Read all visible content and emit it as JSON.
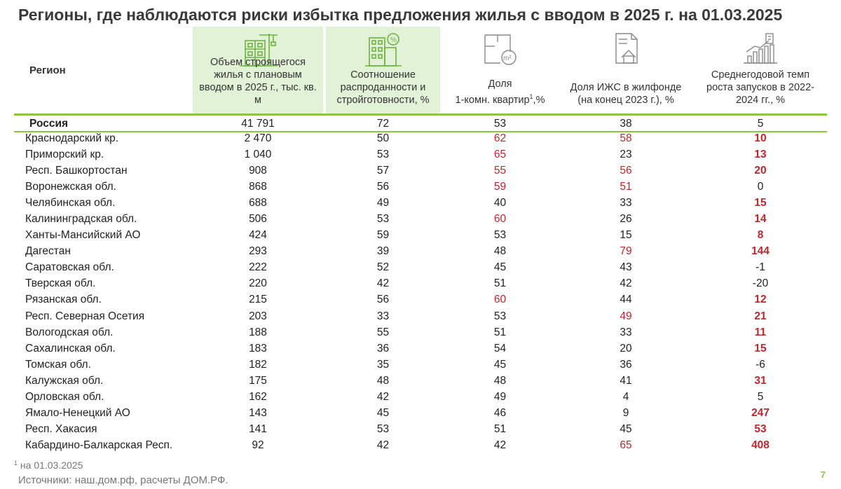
{
  "title": "Регионы, где наблюдаются риски избытка предложения жилья с вводом в 2025 г. на 01.03.2025",
  "header": {
    "region": "Регион",
    "col1": "Объем строящегося жилья с плановым вводом в 2025 г., тыс. кв. м",
    "col2": "Соотношение распроданности и стройготовности, %",
    "col3_a": "Доля",
    "col3_b": "1-комн. квартир",
    "col3_sup": "1",
    "col3_c": ",%",
    "col4": "Доля ИЖС в жилфонде (на конец 2023 г.), %",
    "col5": "Среднегодовой темп роста запусков в 2022-2024 гг., %",
    "icon_m2": "m²"
  },
  "russia": {
    "name": "Россия",
    "v1": "41 791",
    "v2": "72",
    "v3": "53",
    "v4": "38",
    "v5": "5"
  },
  "rows": [
    {
      "name": "Краснодарский кр.",
      "v1": "2 470",
      "v2": "50",
      "v3": "62",
      "v4": "58",
      "v5": "10",
      "r3": true,
      "r4": true,
      "r5": true
    },
    {
      "name": "Приморский кр.",
      "v1": "1 040",
      "v2": "53",
      "v3": "65",
      "v4": "23",
      "v5": "13",
      "r3": true,
      "r4": false,
      "r5": true
    },
    {
      "name": "Респ. Башкортостан",
      "v1": "908",
      "v2": "57",
      "v3": "55",
      "v4": "56",
      "v5": "20",
      "r3": true,
      "r4": true,
      "r5": true
    },
    {
      "name": "Воронежская обл.",
      "v1": "868",
      "v2": "56",
      "v3": "59",
      "v4": "51",
      "v5": "0",
      "r3": true,
      "r4": true,
      "r5": false
    },
    {
      "name": "Челябинская обл.",
      "v1": "688",
      "v2": "49",
      "v3": "40",
      "v4": "33",
      "v5": "15",
      "r3": false,
      "r4": false,
      "r5": true
    },
    {
      "name": "Калининградская обл.",
      "v1": "506",
      "v2": "53",
      "v3": "60",
      "v4": "26",
      "v5": "14",
      "r3": true,
      "r4": false,
      "r5": true
    },
    {
      "name": "Ханты-Мансийский АО",
      "v1": "424",
      "v2": "59",
      "v3": "53",
      "v4": "15",
      "v5": "8",
      "r3": false,
      "r4": false,
      "r5": true
    },
    {
      "name": "Дагестан",
      "v1": "293",
      "v2": "39",
      "v3": "48",
      "v4": "79",
      "v5": "144",
      "r3": false,
      "r4": true,
      "r5": true
    },
    {
      "name": "Саратовская обл.",
      "v1": "222",
      "v2": "52",
      "v3": "45",
      "v4": "43",
      "v5": "-1",
      "r3": false,
      "r4": false,
      "r5": false
    },
    {
      "name": "Тверская обл.",
      "v1": "220",
      "v2": "42",
      "v3": "51",
      "v4": "42",
      "v5": "-20",
      "r3": false,
      "r4": false,
      "r5": false
    },
    {
      "name": "Рязанская обл.",
      "v1": "215",
      "v2": "56",
      "v3": "60",
      "v4": "44",
      "v5": "12",
      "r3": true,
      "r4": false,
      "r5": true
    },
    {
      "name": "Респ. Северная Осетия",
      "v1": "203",
      "v2": "33",
      "v3": "53",
      "v4": "49",
      "v5": "21",
      "r3": false,
      "r4": true,
      "r5": true
    },
    {
      "name": "Вологодская обл.",
      "v1": "188",
      "v2": "55",
      "v3": "51",
      "v4": "33",
      "v5": "11",
      "r3": false,
      "r4": false,
      "r5": true
    },
    {
      "name": "Сахалинская обл.",
      "v1": "183",
      "v2": "36",
      "v3": "54",
      "v4": "20",
      "v5": "15",
      "r3": false,
      "r4": false,
      "r5": true
    },
    {
      "name": "Томская обл.",
      "v1": "182",
      "v2": "35",
      "v3": "45",
      "v4": "36",
      "v5": "-6",
      "r3": false,
      "r4": false,
      "r5": false
    },
    {
      "name": "Калужская обл.",
      "v1": "175",
      "v2": "48",
      "v3": "48",
      "v4": "41",
      "v5": "31",
      "r3": false,
      "r4": false,
      "r5": true
    },
    {
      "name": "Орловская обл.",
      "v1": "162",
      "v2": "42",
      "v3": "49",
      "v4": "4",
      "v5": "5",
      "r3": false,
      "r4": false,
      "r5": false
    },
    {
      "name": "Ямало-Ненецкий АО",
      "v1": "143",
      "v2": "45",
      "v3": "46",
      "v4": "9",
      "v5": "247",
      "r3": false,
      "r4": false,
      "r5": true
    },
    {
      "name": "Респ. Хакасия",
      "v1": "141",
      "v2": "53",
      "v3": "51",
      "v4": "45",
      "v5": "53",
      "r3": false,
      "r4": false,
      "r5": true
    },
    {
      "name": "Кабардино-Балкарская Респ.",
      "v1": "92",
      "v2": "42",
      "v3": "42",
      "v4": "65",
      "v5": "408",
      "r3": false,
      "r4": true,
      "r5": true
    }
  ],
  "footnote_mark": "1",
  "footnote": "на 01.03.2025",
  "sources": "Источники: наш.дом.рф, расчеты ДОМ.РФ.",
  "page_number": "7",
  "colors": {
    "accent": "#8cc63f",
    "highlight": "#c0262b",
    "header_bg": "#e2f2d7"
  }
}
